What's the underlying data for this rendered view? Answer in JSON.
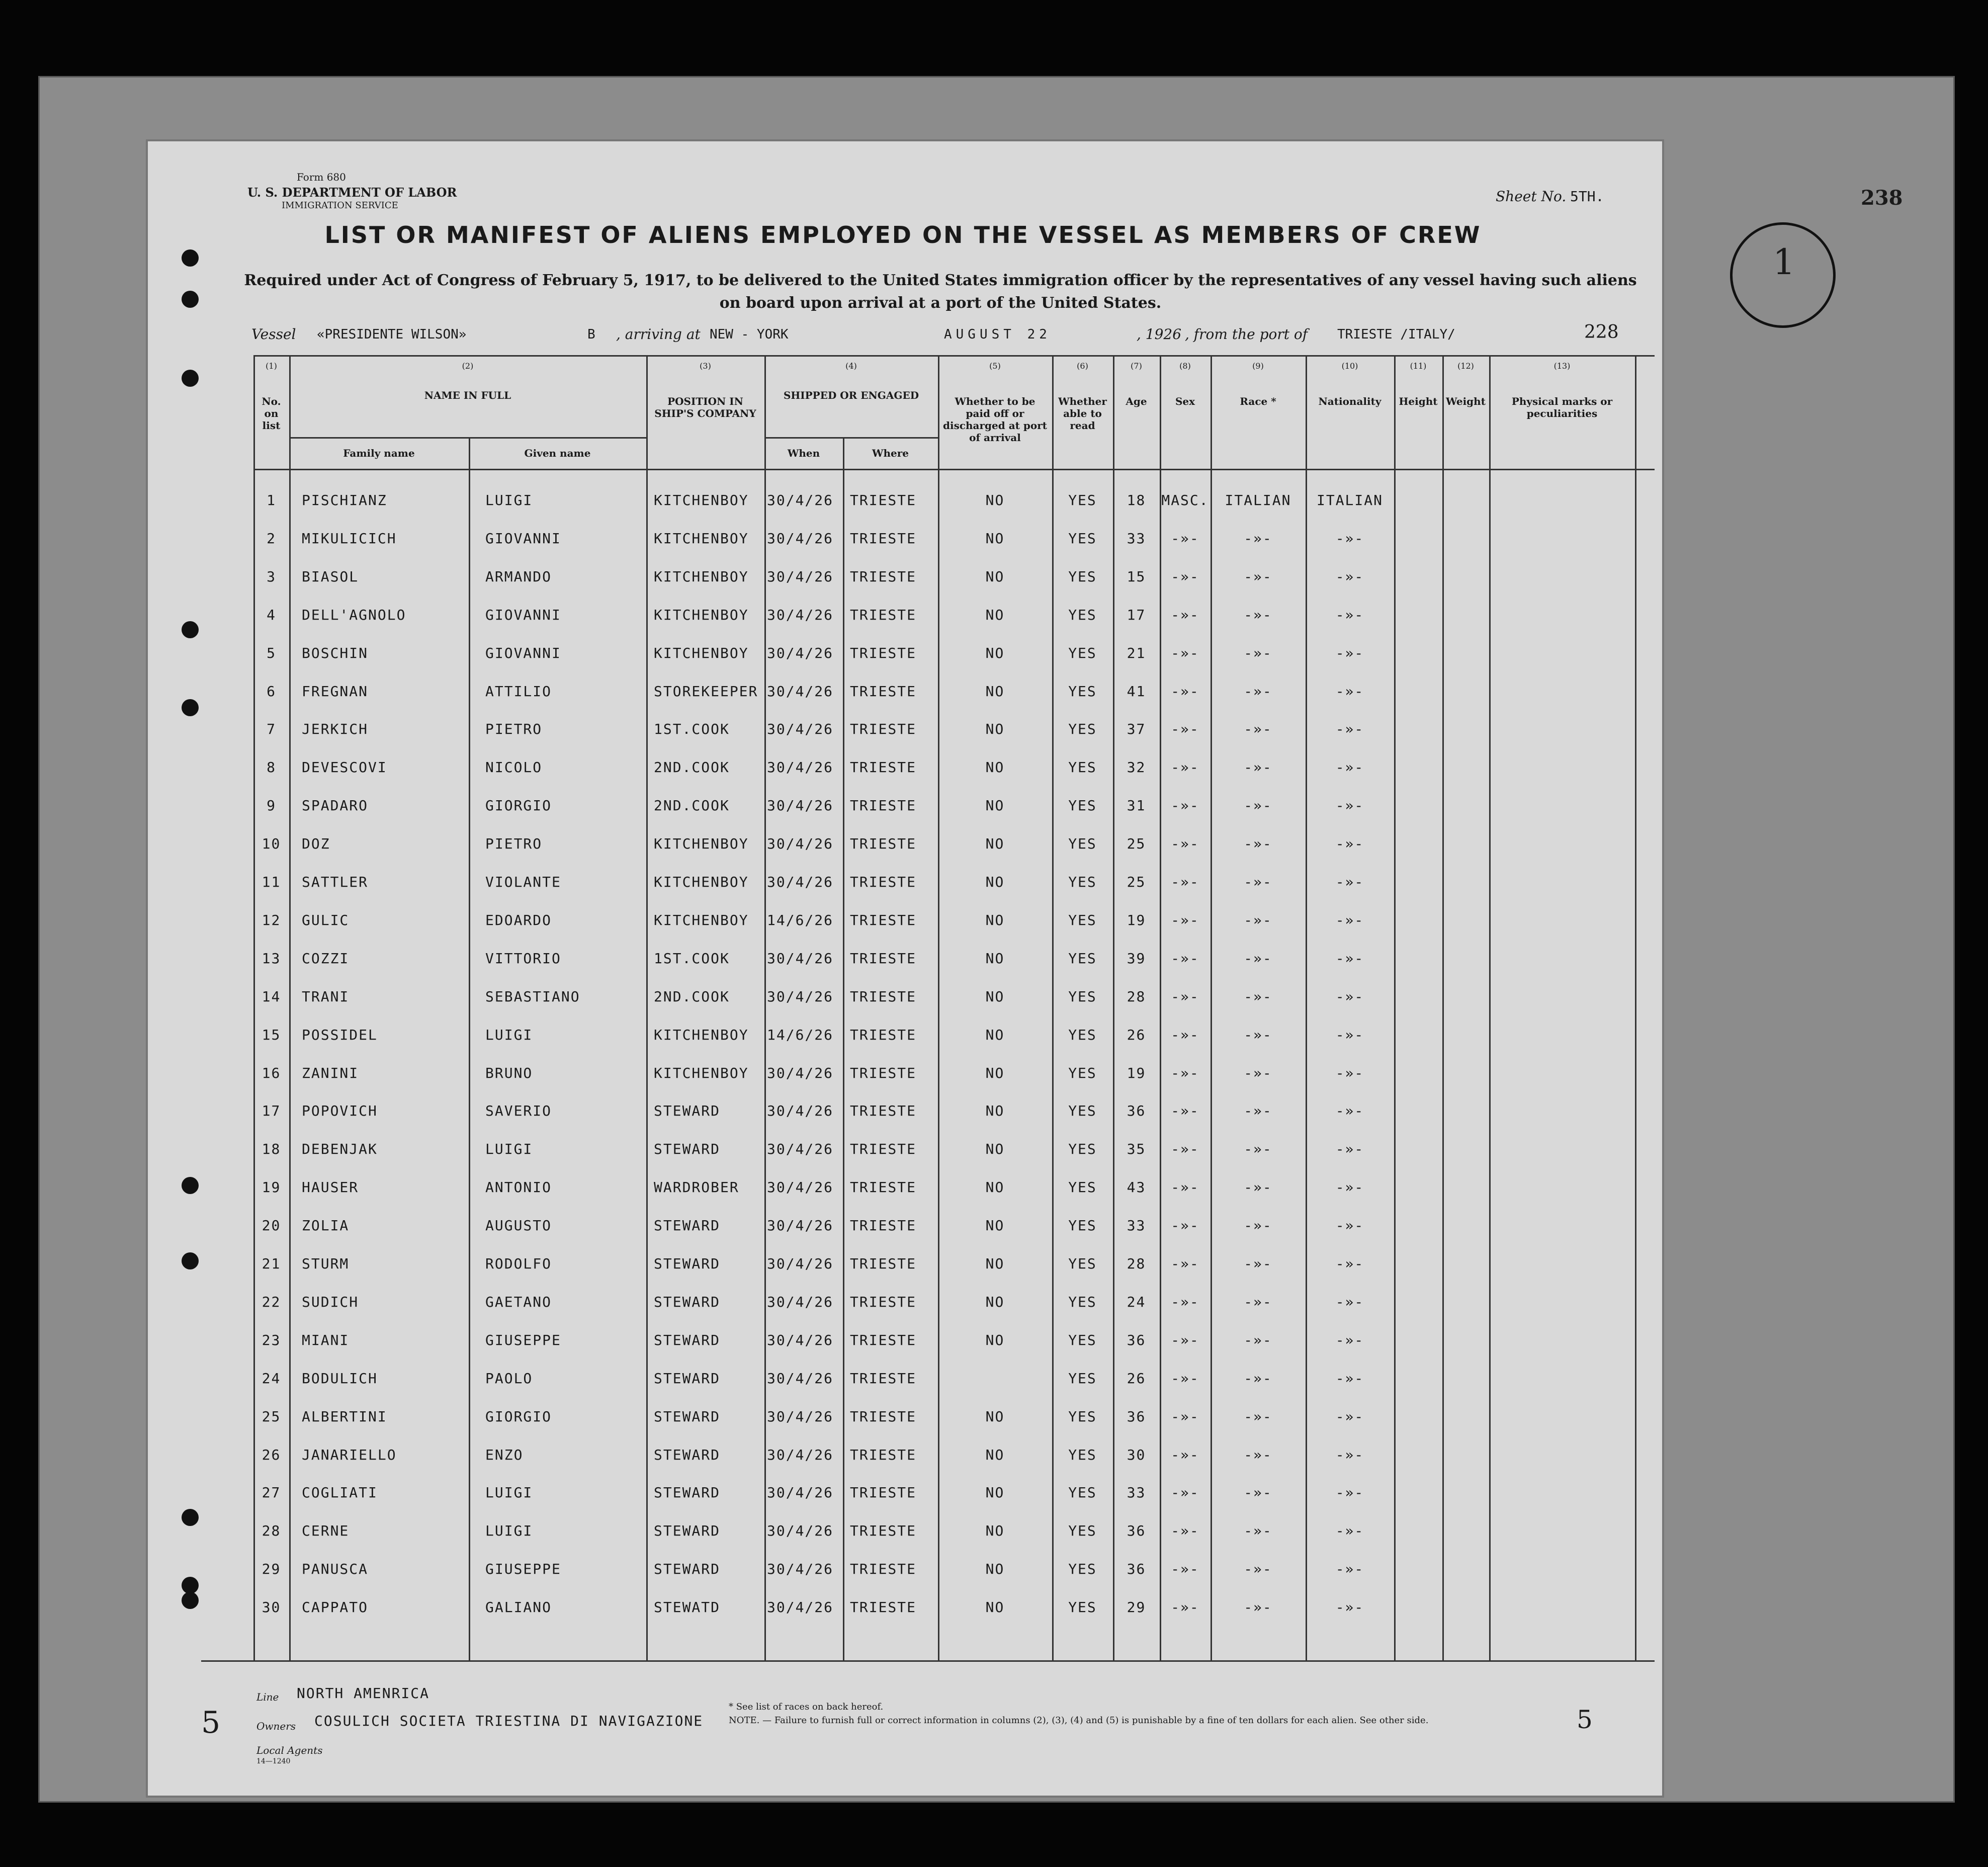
{
  "header": {
    "form": "Form 680",
    "department": "U. S. DEPARTMENT OF LABOR",
    "service": "IMMIGRATION SERVICE",
    "sheet_label": "Sheet No.",
    "sheet": "5TH.",
    "page_number": "238",
    "circled": "1",
    "title": "LIST OR MANIFEST OF ALIENS EMPLOYED ON THE VESSEL AS MEMBERS OF CREW",
    "subtitle": "Required under Act of Congress of February 5, 1917, to be delivered to the United States immigration officer by the representatives of any vessel having such aliens on board upon arrival at a port of the United States."
  },
  "vessel_line": {
    "vessel_label": "Vessel",
    "vessel": "«PRESIDENTE WILSON»",
    "code": "B",
    "arriving_label": ", arriving at",
    "arriving_at": "NEW - YORK",
    "date": "AUGUST 22",
    "year": ", 1926",
    "from_label": ", from the port of",
    "from_port": "TRIESTE /ITALY/",
    "number": "228"
  },
  "columns": [
    {
      "number": "(1)",
      "label": "No. on list"
    },
    {
      "number": "(2)",
      "label": "NAME IN FULL",
      "sub": [
        "Family name",
        "Given name"
      ]
    },
    {
      "number": "(3)",
      "label": "POSITION IN SHIP'S COMPANY"
    },
    {
      "number": "(4)",
      "label": "SHIPPED OR ENGAGED",
      "sub": [
        "When",
        "Where"
      ]
    },
    {
      "number": "(5)",
      "label": "Whether to be paid off or discharged at port of arrival"
    },
    {
      "number": "(6)",
      "label": "Whether able to read"
    },
    {
      "number": "(7)",
      "label": "Age"
    },
    {
      "number": "(8)",
      "label": "Sex"
    },
    {
      "number": "(9)",
      "label": "Race *"
    },
    {
      "number": "(10)",
      "label": "Nationality"
    },
    {
      "number": "(11)",
      "label": "Height"
    },
    {
      "number": "(12)",
      "label": "Weight"
    },
    {
      "number": "(13)",
      "label": "Physical marks or peculiarities"
    }
  ],
  "rows": [
    [
      1,
      "PISCHIANZ",
      "LUIGI",
      "KITCHENBOY",
      "30/4/26",
      "TRIESTE",
      "NO",
      "YES",
      18,
      "MASC.",
      "ITALIAN",
      "ITALIAN"
    ],
    [
      2,
      "MIKULICICH",
      "GIOVANNI",
      "KITCHENBOY",
      "30/4/26",
      "TRIESTE",
      "NO",
      "YES",
      33,
      "-»-",
      "-»-",
      "-»-"
    ],
    [
      3,
      "BIASOL",
      "ARMANDO",
      "KITCHENBOY",
      "30/4/26",
      "TRIESTE",
      "NO",
      "YES",
      15,
      "-»-",
      "-»-",
      "-»-"
    ],
    [
      4,
      "DELL'AGNOLO",
      "GIOVANNI",
      "KITCHENBOY",
      "30/4/26",
      "TRIESTE",
      "NO",
      "YES",
      17,
      "-»-",
      "-»-",
      "-»-"
    ],
    [
      5,
      "BOSCHIN",
      "GIOVANNI",
      "KITCHENBOY",
      "30/4/26",
      "TRIESTE",
      "NO",
      "YES",
      21,
      "-»-",
      "-»-",
      "-»-"
    ],
    [
      6,
      "FREGNAN",
      "ATTILIO",
      "STOREKEEPER",
      "30/4/26",
      "TRIESTE",
      "NO",
      "YES",
      41,
      "-»-",
      "-»-",
      "-»-"
    ],
    [
      7,
      "JERKICH",
      "PIETRO",
      "1ST.COOK",
      "30/4/26",
      "TRIESTE",
      "NO",
      "YES",
      37,
      "-»-",
      "-»-",
      "-»-"
    ],
    [
      8,
      "DEVESCOVI",
      "NICOLO",
      "2ND.COOK",
      "30/4/26",
      "TRIESTE",
      "NO",
      "YES",
      32,
      "-»-",
      "-»-",
      "-»-"
    ],
    [
      9,
      "SPADARO",
      "GIORGIO",
      "2ND.COOK",
      "30/4/26",
      "TRIESTE",
      "NO",
      "YES",
      31,
      "-»-",
      "-»-",
      "-»-"
    ],
    [
      10,
      "DOZ",
      "PIETRO",
      "KITCHENBOY",
      "30/4/26",
      "TRIESTE",
      "NO",
      "YES",
      25,
      "-»-",
      "-»-",
      "-»-"
    ],
    [
      11,
      "SATTLER",
      "VIOLANTE",
      "KITCHENBOY",
      "30/4/26",
      "TRIESTE",
      "NO",
      "YES",
      25,
      "-»-",
      "-»-",
      "-»-"
    ],
    [
      12,
      "GULIC",
      "EDOARDO",
      "KITCHENBOY",
      "14/6/26",
      "TRIESTE",
      "NO",
      "YES",
      19,
      "-»-",
      "-»-",
      "-»-"
    ],
    [
      13,
      "COZZI",
      "VITTORIO",
      "1ST.COOK",
      "30/4/26",
      "TRIESTE",
      "NO",
      "YES",
      39,
      "-»-",
      "-»-",
      "-»-"
    ],
    [
      14,
      "TRANI",
      "SEBASTIANO",
      "2ND.COOK",
      "30/4/26",
      "TRIESTE",
      "NO",
      "YES",
      28,
      "-»-",
      "-»-",
      "-»-"
    ],
    [
      15,
      "POSSIDEL",
      "LUIGI",
      "KITCHENBOY",
      "14/6/26",
      "TRIESTE",
      "NO",
      "YES",
      26,
      "-»-",
      "-»-",
      "-»-"
    ],
    [
      16,
      "ZANINI",
      "BRUNO",
      "KITCHENBOY",
      "30/4/26",
      "TRIESTE",
      "NO",
      "YES",
      19,
      "-»-",
      "-»-",
      "-»-"
    ],
    [
      17,
      "POPOVICH",
      "SAVERIO",
      "STEWARD",
      "30/4/26",
      "TRIESTE",
      "NO",
      "YES",
      36,
      "-»-",
      "-»-",
      "-»-"
    ],
    [
      18,
      "DEBENJAK",
      "LUIGI",
      "STEWARD",
      "30/4/26",
      "TRIESTE",
      "NO",
      "YES",
      35,
      "-»-",
      "-»-",
      "-»-"
    ],
    [
      19,
      "HAUSER",
      "ANTONIO",
      "WARDROBER",
      "30/4/26",
      "TRIESTE",
      "NO",
      "YES",
      43,
      "-»-",
      "-»-",
      "-»-"
    ],
    [
      20,
      "ZOLIA",
      "AUGUSTO",
      "STEWARD",
      "30/4/26",
      "TRIESTE",
      "NO",
      "YES",
      33,
      "-»-",
      "-»-",
      "-»-"
    ],
    [
      21,
      "STURM",
      "RODOLFO",
      "STEWARD",
      "30/4/26",
      "TRIESTE",
      "NO",
      "YES",
      28,
      "-»-",
      "-»-",
      "-»-"
    ],
    [
      22,
      "SUDICH",
      "GAETANO",
      "STEWARD",
      "30/4/26",
      "TRIESTE",
      "NO",
      "YES",
      24,
      "-»-",
      "-»-",
      "-»-"
    ],
    [
      23,
      "MIANI",
      "GIUSEPPE",
      "STEWARD",
      "30/4/26",
      "TRIESTE",
      "NO",
      "YES",
      36,
      "-»-",
      "-»-",
      "-»-"
    ],
    [
      24,
      "BODULICH",
      "PAOLO",
      "STEWARD",
      "30/4/26",
      "TRIESTE",
      null,
      "YES",
      26,
      "-»-",
      "-»-",
      "-»-"
    ],
    [
      25,
      "ALBERTINI",
      "GIORGIO",
      "STEWARD",
      "30/4/26",
      "TRIESTE",
      "NO",
      "YES",
      36,
      "-»-",
      "-»-",
      "-»-"
    ],
    [
      26,
      "JANARIELLO",
      "ENZO",
      "STEWARD",
      "30/4/26",
      "TRIESTE",
      "NO",
      "YES",
      30,
      "-»-",
      "-»-",
      "-»-"
    ],
    [
      27,
      "COGLIATI",
      "LUIGI",
      "STEWARD",
      "30/4/26",
      "TRIESTE",
      "NO",
      "YES",
      33,
      "-»-",
      "-»-",
      "-»-"
    ],
    [
      28,
      "CERNE",
      "LUIGI",
      "STEWARD",
      "30/4/26",
      "TRIESTE",
      "NO",
      "YES",
      36,
      "-»-",
      "-»-",
      "-»-"
    ],
    [
      29,
      "PANUSCA",
      "GIUSEPPE",
      "STEWARD",
      "30/4/26",
      "TRIESTE",
      "NO",
      "YES",
      36,
      "-»-",
      "-»-",
      "-»-"
    ],
    [
      30,
      "CAPPATO",
      "GALIANO",
      "STEWATD",
      "30/4/26",
      "TRIESTE",
      "NO",
      "YES",
      29,
      "-»-",
      "-»-",
      "-»-"
    ]
  ],
  "footer": {
    "line_label": "Line",
    "line": "NORTH AMENRICA",
    "owners_label": "Owners",
    "owners": "COSULICH SOCIETA TRIESTINA DI NAVIGAZIONE",
    "agents_label": "Local Agents",
    "form_code": "14—1240",
    "races_note": "* See list of races on back hereof.",
    "note": "NOTE. — Failure to furnish full or correct information in columns (2), (3), (4) and (5) is punishable by a fine of ten dollars for each alien. See other side.",
    "left_mark": "5",
    "right_mark": "5"
  }
}
